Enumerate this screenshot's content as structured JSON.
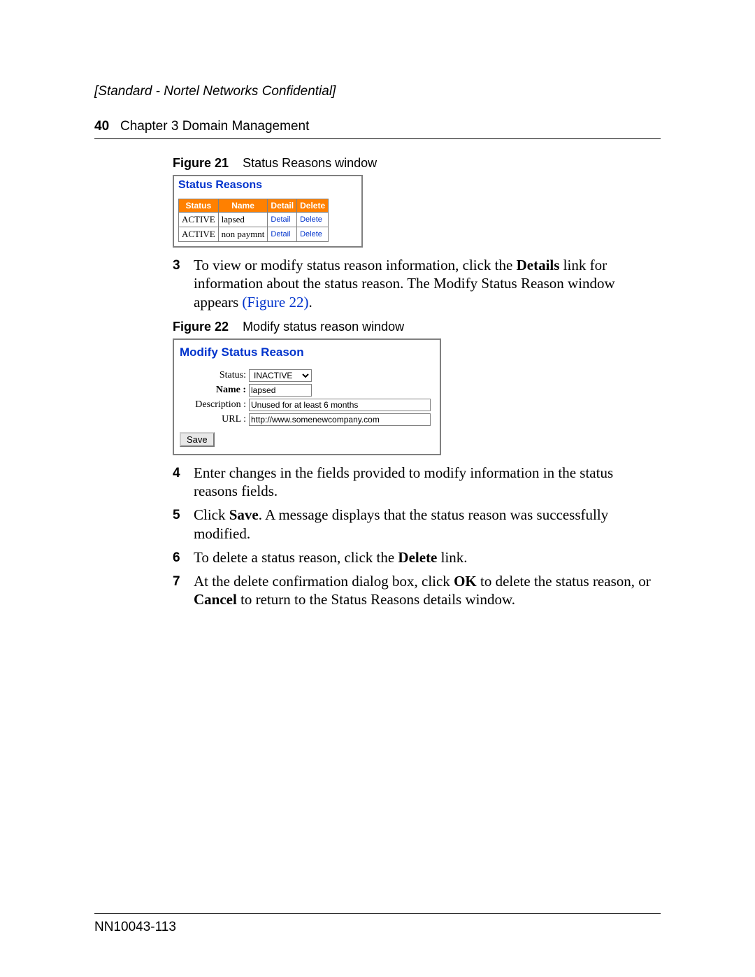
{
  "header": {
    "confidential": "[Standard - Nortel Networks Confidential]",
    "page_number": "40",
    "chapter": "Chapter 3  Domain Management"
  },
  "figure21": {
    "label": "Figure 21",
    "caption": "Status Reasons window",
    "window_title": "Status Reasons",
    "columns": [
      "Status",
      "Name",
      "Detail",
      "Delete"
    ],
    "rows": [
      {
        "status": "ACTIVE",
        "name": "lapsed",
        "detail": "Detail",
        "delete": "Delete"
      },
      {
        "status": "ACTIVE",
        "name": "non paymnt",
        "detail": "Detail",
        "delete": "Delete"
      }
    ]
  },
  "step3": {
    "num": "3",
    "text_a": "To view or modify status reason information, click the ",
    "bold_a": "Details",
    "text_b": " link for information about the status reason. The Modify Status Reason window appears ",
    "figlink": "(Figure 22)",
    "text_c": "."
  },
  "figure22": {
    "label": "Figure 22",
    "caption": "Modify status reason window",
    "window_title": "Modify Status Reason",
    "labels": {
      "status": "Status:",
      "name": "Name :",
      "description": "Description :",
      "url": "URL :"
    },
    "values": {
      "status": "INACTIVE",
      "name": "lapsed",
      "description": "Unused for at least 6 months",
      "url": "http://www.somenewcompany.com"
    },
    "save_label": "Save"
  },
  "step4": {
    "num": "4",
    "text": "Enter changes in the fields provided to modify information in the status reasons fields."
  },
  "step5": {
    "num": "5",
    "text_a": "Click ",
    "bold_a": "Save",
    "text_b": ". A message displays that the status reason was successfully modified."
  },
  "step6": {
    "num": "6",
    "text_a": "To delete a status reason, click the ",
    "bold_a": "Delete",
    "text_b": " link."
  },
  "step7": {
    "num": "7",
    "text_a": "At the delete confirmation dialog box, click ",
    "bold_a": "OK",
    "text_b": " to delete the status reason, or ",
    "bold_b": "Cancel",
    "text_c": " to return to the Status Reasons details window."
  },
  "footer": {
    "doc_id": "NN10043-113"
  },
  "colors": {
    "link_blue": "#0033cc",
    "header_orange": "#ff8000",
    "border_gray": "#808080"
  }
}
